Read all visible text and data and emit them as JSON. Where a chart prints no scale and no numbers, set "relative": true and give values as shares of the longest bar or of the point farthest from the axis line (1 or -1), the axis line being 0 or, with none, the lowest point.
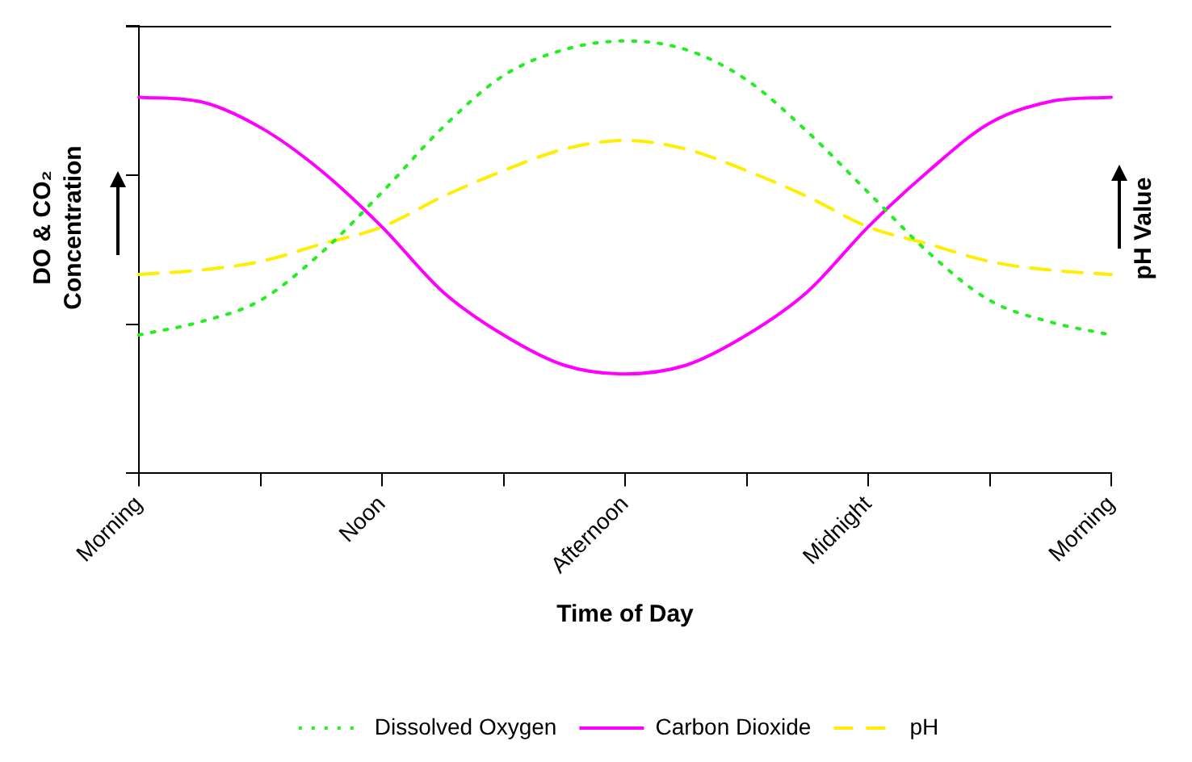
{
  "chart_data": {
    "type": "line",
    "relative": true,
    "xlabel": "Time of Day",
    "ylabel": "DO & CO₂ Concentration",
    "y2label": "pH Value",
    "categories": [
      "Morning",
      null,
      null,
      null,
      "Noon",
      null,
      null,
      null,
      "Afternoon",
      null,
      null,
      null,
      "Midnight",
      null,
      null,
      null,
      "Morning"
    ],
    "series": [
      {
        "name": "Dissolved Oxygen",
        "color": "#22ee22",
        "line_style": "dotted",
        "values": [
          0.32,
          0.35,
          0.4,
          0.51,
          0.65,
          0.8,
          0.92,
          0.98,
          1,
          0.98,
          0.91,
          0.79,
          0.65,
          0.51,
          0.4,
          0.35,
          0.32
        ]
      },
      {
        "name": "Carbon Dioxide",
        "color": "#ff00ff",
        "line_style": "solid",
        "values": [
          0.87,
          0.86,
          0.8,
          0.7,
          0.57,
          0.42,
          0.32,
          0.25,
          0.23,
          0.25,
          0.32,
          0.42,
          0.57,
          0.7,
          0.81,
          0.86,
          0.87
        ]
      },
      {
        "name": "pH",
        "color": "#ffee00",
        "line_style": "dashed",
        "values": [
          0.46,
          0.47,
          0.49,
          0.53,
          0.57,
          0.64,
          0.7,
          0.75,
          0.77,
          0.75,
          0.7,
          0.64,
          0.57,
          0.53,
          0.49,
          0.47,
          0.46
        ]
      }
    ],
    "legend": "bottom",
    "grid": false,
    "marker": "none"
  }
}
